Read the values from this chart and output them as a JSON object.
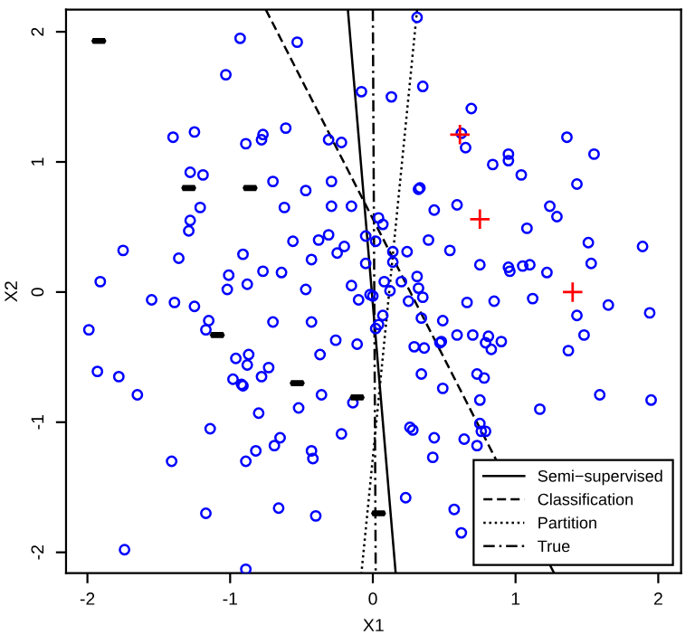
{
  "chart_data": {
    "type": "scatter",
    "xlabel": "X1",
    "ylabel": "X2",
    "xlim": [
      -2.15,
      2.16
    ],
    "ylim": [
      -2.16,
      2.17
    ],
    "xticks": [
      -2,
      -1,
      0,
      1,
      2
    ],
    "yticks": [
      -2,
      -1,
      0,
      1,
      2
    ],
    "grid": false,
    "legend": "bottom right",
    "series": [
      {
        "marker": "circle",
        "color": "#0000ff",
        "x": [
          -0.93,
          -0.53,
          -1.03,
          -1.4,
          -1.25,
          -0.89,
          -0.78,
          -0.77,
          -0.61,
          -0.31,
          -0.22,
          -1.28,
          -1.19,
          -0.7,
          -0.47,
          -0.29,
          -1.21,
          -0.62,
          -0.29,
          -0.15,
          -1.28,
          -1.29,
          -1.75,
          -0.56,
          -0.38,
          -0.31,
          -0.2,
          -0.25,
          -1.36,
          -0.91,
          -0.43,
          -1.01,
          -0.77,
          -0.64,
          -1.91,
          -0.88,
          -1.02,
          -0.47,
          -0.15,
          -0.1,
          -0.08,
          0.31,
          0.13,
          0.35,
          0.69,
          0.65,
          0.62,
          1.36,
          0.95,
          0.95,
          0.84,
          1.55,
          1.04,
          1.43,
          0.32,
          0.33,
          0.59,
          0.43,
          1.24,
          1.29,
          0.04,
          0.07,
          1.08,
          0.39,
          -0.05,
          0.02,
          1.51,
          1.89,
          0.54,
          0.14,
          0.24,
          -0.05,
          0.14,
          0.75,
          0.95,
          0.96,
          1.05,
          1.1,
          1.22,
          1.53,
          0.08,
          0.2,
          0.31,
          0.32,
          0.12,
          -0.02,
          0.0,
          0.25,
          0.35,
          0.66,
          0.85,
          1.12,
          1.65,
          -1.55,
          -1.39,
          -1.25,
          -1.99,
          -1.15,
          -1.17,
          -0.7,
          -0.43,
          -0.26,
          -0.11,
          -0.96,
          -0.87,
          -0.88,
          -0.73,
          -0.37,
          -1.93,
          -1.78,
          -0.98,
          -0.92,
          -0.91,
          -0.78,
          -1.65,
          -0.36,
          -0.14,
          -0.52,
          -0.8,
          -1.14,
          -0.22,
          -0.65,
          -0.69,
          -0.82,
          -0.43,
          -0.42,
          -1.41,
          -0.89,
          -1.17,
          -0.66,
          -0.4,
          -1.74,
          -0.89,
          1.94,
          0.07,
          0.04,
          0.02,
          0.34,
          0.49,
          0.59,
          0.7,
          0.81,
          0.79,
          0.9,
          0.83,
          0.47,
          0.48,
          0.29,
          0.36,
          1.37,
          1.48,
          1.43,
          0.34,
          0.73,
          0.78,
          0.49,
          0.75,
          1.59,
          1.95,
          1.17,
          0.26,
          0.28,
          0.75,
          0.76,
          0.79,
          0.43,
          0.64,
          0.73,
          0.42,
          0.23,
          0.57,
          0.62
        ],
        "values": [
          1.95,
          1.92,
          1.67,
          1.19,
          1.23,
          1.14,
          1.17,
          1.21,
          1.26,
          1.17,
          1.15,
          0.92,
          0.9,
          0.85,
          0.78,
          0.85,
          0.65,
          0.65,
          0.66,
          0.66,
          0.55,
          0.47,
          0.32,
          0.39,
          0.4,
          0.44,
          0.35,
          0.3,
          0.26,
          0.29,
          0.25,
          0.13,
          0.16,
          0.15,
          0.08,
          0.06,
          0.02,
          0.02,
          0.05,
          -0.06,
          1.54,
          2.11,
          1.5,
          1.58,
          1.41,
          1.11,
          1.22,
          1.19,
          1.06,
          1.01,
          0.98,
          1.06,
          0.9,
          0.83,
          0.79,
          0.8,
          0.67,
          0.63,
          0.66,
          0.58,
          0.57,
          0.52,
          0.49,
          0.4,
          0.43,
          0.39,
          0.38,
          0.35,
          0.32,
          0.31,
          0.31,
          0.22,
          0.23,
          0.21,
          0.19,
          0.16,
          0.2,
          0.21,
          0.15,
          0.22,
          0.08,
          0.08,
          0.12,
          0.03,
          0.01,
          -0.02,
          -0.03,
          -0.07,
          -0.04,
          -0.08,
          -0.07,
          -0.05,
          -0.1,
          -0.06,
          -0.08,
          -0.11,
          -0.29,
          -0.22,
          -0.29,
          -0.23,
          -0.23,
          -0.37,
          -0.4,
          -0.51,
          -0.48,
          -0.56,
          -0.58,
          -0.48,
          -0.61,
          -0.65,
          -0.67,
          -0.71,
          -0.72,
          -0.65,
          -0.79,
          -0.79,
          -0.85,
          -0.89,
          -0.93,
          -1.05,
          -1.09,
          -1.12,
          -1.18,
          -1.22,
          -1.22,
          -1.28,
          -1.3,
          -1.3,
          -1.7,
          -1.66,
          -1.72,
          -1.98,
          -2.13,
          -0.16,
          -0.18,
          -0.25,
          -0.28,
          -0.2,
          -0.22,
          -0.33,
          -0.33,
          -0.34,
          -0.39,
          -0.38,
          -0.44,
          -0.39,
          -0.38,
          -0.42,
          -0.43,
          -0.45,
          -0.33,
          -0.18,
          -0.63,
          -0.63,
          -0.66,
          -0.74,
          -0.83,
          -0.79,
          -0.83,
          -0.9,
          -1.04,
          -1.06,
          -1.01,
          -1.07,
          -1.07,
          -1.12,
          -1.13,
          -1.18,
          -1.27,
          -1.58,
          -1.67,
          -1.85
        ]
      },
      {
        "marker": "cross",
        "color": "#ff0000",
        "x": [
          0.61,
          0.75,
          1.4
        ],
        "values": [
          1.21,
          0.56,
          0.0
        ]
      },
      {
        "color": "#000000",
        "x": [
          -1.92,
          -1.29,
          -0.86,
          -1.09,
          -0.53,
          -0.11,
          0.04
        ],
        "values": [
          1.93,
          0.8,
          0.8,
          -0.33,
          -0.7,
          -0.81,
          -1.7
        ]
      },
      {
        "type": "line",
        "name": "Semi−supervised",
        "color": "#000000",
        "line_style": "solid",
        "x": [
          -0.175,
          0.16
        ],
        "values": [
          2.17,
          -2.16
        ]
      },
      {
        "type": "line",
        "name": "Classification",
        "color": "#000000",
        "line_style": "dashed",
        "x": [
          -0.75,
          1.27
        ],
        "values": [
          2.17,
          -2.16
        ]
      },
      {
        "type": "line",
        "name": "Partition",
        "color": "#000000",
        "line_style": "dotted",
        "x": [
          0.31,
          -0.08
        ],
        "values": [
          2.17,
          -2.16
        ]
      },
      {
        "type": "line",
        "name": "True",
        "color": "#000000",
        "line_style": "dashdot",
        "x": [
          0.0,
          0.02
        ],
        "values": [
          2.17,
          -2.16
        ]
      }
    ]
  }
}
